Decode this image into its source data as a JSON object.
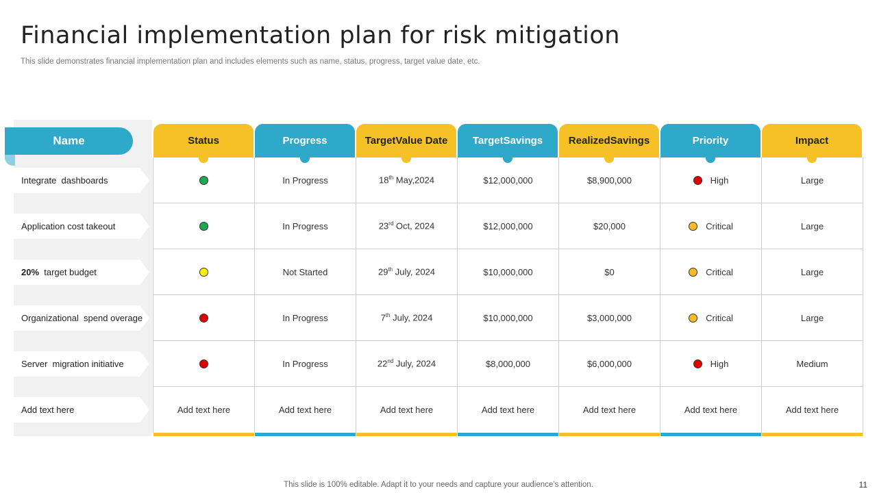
{
  "title": "Financial implementation plan for risk mitigation",
  "subtitle": "This slide demonstrates financial implementation plan and includes elements such as name, status, progress, target value date, etc.",
  "colors": {
    "yellow": "#F6C126",
    "blue": "#2EA9CA",
    "green": "#1FA84F",
    "status_yellow": "#FFF200",
    "red": "#E00000",
    "orange": "#F5B92B"
  },
  "table": {
    "name_header": "Name",
    "headers": [
      "Status",
      "Progress",
      "Target\nValue Date",
      "Target\nSavings",
      "Realized\nSavings",
      "Priority",
      "Impact"
    ],
    "rows": [
      {
        "name": "Integrate  dashboards",
        "name_bold": "",
        "status": "green",
        "progress": "In Progress",
        "date": {
          "day": "18",
          "suffix": "th",
          "rest": " May,2024"
        },
        "target_savings": "$12,000,000",
        "realized_savings": "$8,900,000",
        "priority": "High",
        "priority_color": "red",
        "impact": "Large"
      },
      {
        "name": "Application cost takeout",
        "name_bold": "",
        "status": "green",
        "progress": "In Progress",
        "date": {
          "day": "23",
          "suffix": "rd",
          "rest": " Oct, 2024"
        },
        "target_savings": "$12,000,000",
        "realized_savings": "$20,000",
        "priority": "Critical",
        "priority_color": "orange",
        "impact": "Large"
      },
      {
        "name": "  target budget",
        "name_bold": "20%",
        "status": "status_yellow",
        "progress": "Not Started",
        "date": {
          "day": "29",
          "suffix": "th",
          "rest": " July, 2024"
        },
        "target_savings": "$10,000,000",
        "realized_savings": "$0",
        "priority": "Critical",
        "priority_color": "orange",
        "impact": "Large"
      },
      {
        "name": "Organizational  spend overage",
        "name_bold": "",
        "status": "red",
        "progress": "In Progress",
        "date": {
          "day": "7",
          "suffix": "th",
          "rest": " July, 2024"
        },
        "target_savings": "$10,000,000",
        "realized_savings": "$3,000,000",
        "priority": "Critical",
        "priority_color": "orange",
        "impact": "Large"
      },
      {
        "name": "Server  migration initiative",
        "name_bold": "",
        "status": "red",
        "progress": "In Progress",
        "date": {
          "day": "22",
          "suffix": "nd",
          "rest": " July, 2024"
        },
        "target_savings": "$8,000,000",
        "realized_savings": "$6,000,000",
        "priority": "High",
        "priority_color": "red",
        "impact": "Medium"
      },
      {
        "name": "Add text here",
        "placeholder": "Add text here"
      }
    ]
  },
  "footer": "This slide is 100% editable. Adapt it to your needs and capture your audience’s attention.",
  "page_number": "11"
}
